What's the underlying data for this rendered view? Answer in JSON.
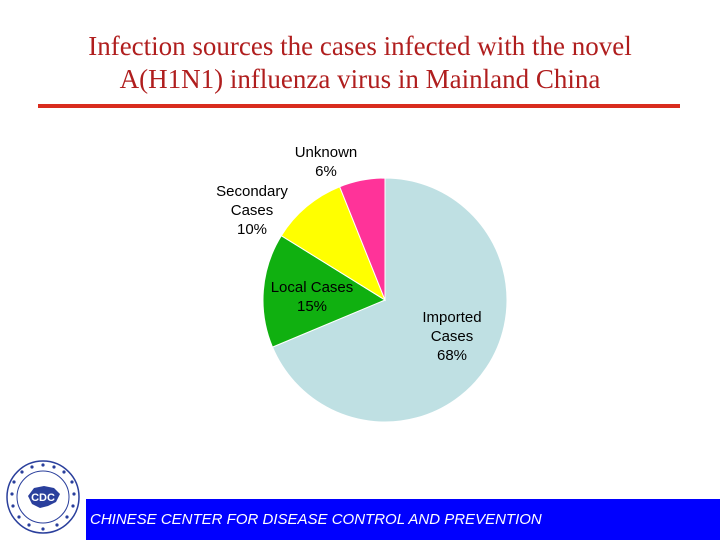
{
  "slide": {
    "title_line1": "Infection sources the cases infected with the  novel",
    "title_line2": "A(H1N1) influenza virus in Mainland China",
    "footer": "CHINESE CENTER FOR DISEASE CONTROL AND PREVENTION",
    "logo_text": "CDC"
  },
  "colors": {
    "title": "#b01e1e",
    "rule": "#d92c1e",
    "footer_bar": "#0000ff",
    "logo": "#2a3f9c"
  },
  "chart_data": {
    "type": "pie",
    "title": "",
    "start": "12 o'clock, clockwise",
    "slices": [
      {
        "label": [
          "Imported",
          "Cases",
          "68%"
        ],
        "value": 68,
        "color": "#bfe0e3"
      },
      {
        "label": [
          "Local Cases",
          "15%"
        ],
        "value": 15,
        "color": "#10b010"
      },
      {
        "label": [
          "Secondary",
          "Cases",
          "10%"
        ],
        "value": 10,
        "color": "#ffff00"
      },
      {
        "label": [
          "Unknown",
          "6%"
        ],
        "value": 6,
        "color": "#ff3399"
      }
    ]
  }
}
